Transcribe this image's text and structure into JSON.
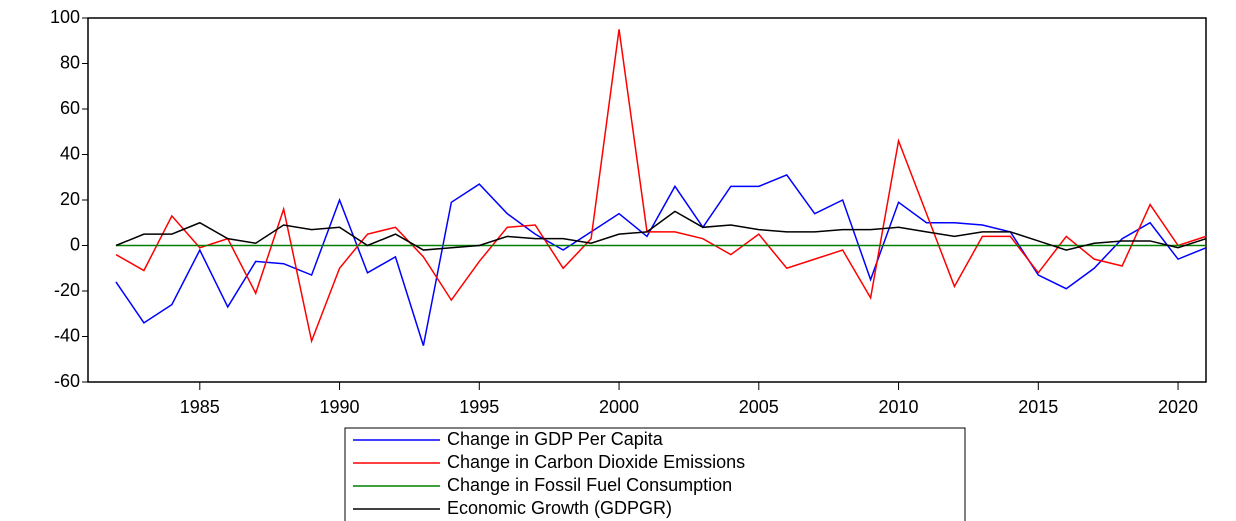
{
  "chart_data": {
    "type": "line",
    "x": [
      1982,
      1983,
      1984,
      1985,
      1986,
      1987,
      1988,
      1989,
      1990,
      1991,
      1992,
      1993,
      1994,
      1995,
      1996,
      1997,
      1998,
      1999,
      2000,
      2001,
      2002,
      2003,
      2004,
      2005,
      2006,
      2007,
      2008,
      2009,
      2010,
      2011,
      2012,
      2013,
      2014,
      2015,
      2016,
      2017,
      2018,
      2019,
      2020,
      2021
    ],
    "series": [
      {
        "name": "Change in GDP Per Capita",
        "color": "#0000ff",
        "values": [
          -16,
          -34,
          -26,
          -2,
          -27,
          -7,
          -8,
          -13,
          20,
          -12,
          -5,
          -44,
          19,
          27,
          14,
          5,
          -2,
          6,
          14,
          4,
          26,
          8,
          26,
          26,
          31,
          14,
          20,
          -15,
          19,
          10,
          10,
          9,
          6,
          -13,
          -19,
          -10,
          3,
          10,
          -6,
          -1
        ]
      },
      {
        "name": "Change in Carbon Dioxide Emissions",
        "color": "#ff0000",
        "values": [
          -4,
          -11,
          13,
          -1,
          3,
          -21,
          16,
          -42,
          -10,
          5,
          8,
          -5,
          -24,
          -7,
          8,
          9,
          -10,
          3,
          95,
          6,
          6,
          3,
          -4,
          5,
          -10,
          -6,
          -2,
          -23,
          46,
          14,
          -18,
          4,
          4,
          -12,
          4,
          -6,
          -9,
          18,
          0,
          4
        ]
      },
      {
        "name": "Change in Fossil Fuel Consumption",
        "color": "#008000",
        "values": [
          0,
          0,
          0,
          0,
          0,
          0,
          0,
          0,
          0,
          0,
          0,
          0,
          0,
          0,
          0,
          0,
          0,
          0,
          0,
          0,
          0,
          0,
          0,
          0,
          0,
          0,
          0,
          0,
          0,
          0,
          0,
          0,
          0,
          0,
          0,
          0,
          0,
          0,
          0,
          0
        ]
      },
      {
        "name": "Economic Growth (GDPGR)",
        "color": "#000000",
        "values": [
          0,
          5,
          5,
          10,
          3,
          1,
          9,
          7,
          8,
          0,
          5,
          -2,
          -1,
          0,
          4,
          3,
          3,
          1,
          5,
          6,
          15,
          8,
          9,
          7,
          6,
          6,
          7,
          7,
          8,
          6,
          4,
          6,
          6,
          2,
          -2,
          1,
          2,
          2,
          -1,
          3
        ]
      }
    ],
    "xlim": [
      1981,
      2021
    ],
    "xticks": [
      1985,
      1990,
      1995,
      2000,
      2005,
      2010,
      2015,
      2020
    ],
    "ylim": [
      -60,
      100
    ],
    "yticks": [
      -60,
      -40,
      -20,
      0,
      20,
      40,
      60,
      80,
      100
    ],
    "grid": false,
    "legend": "bottom"
  }
}
